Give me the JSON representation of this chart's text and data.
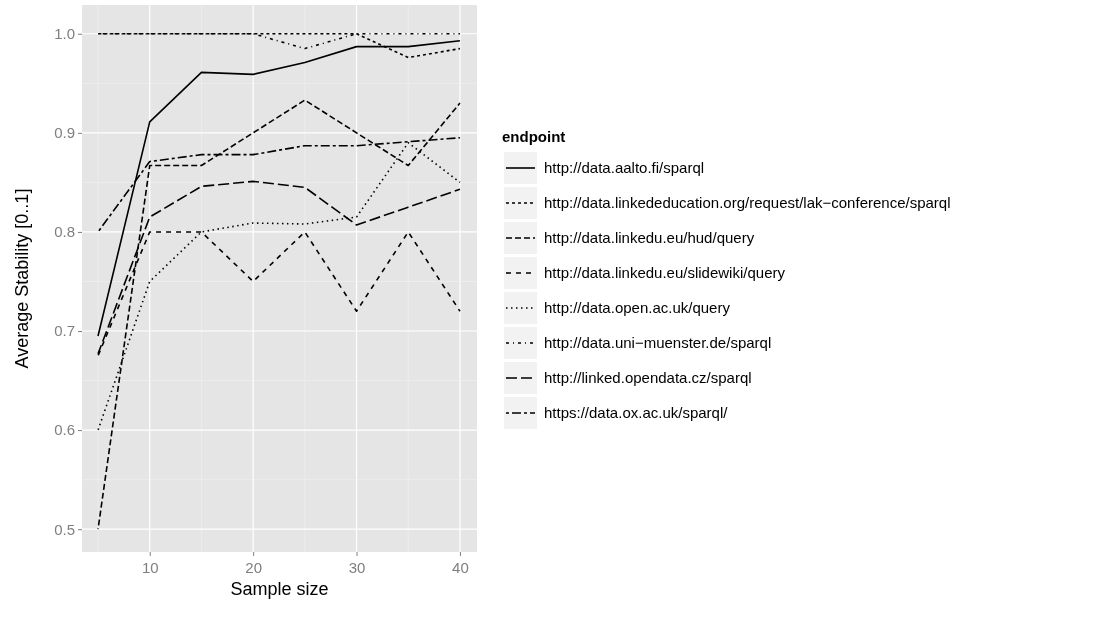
{
  "chart_data": {
    "type": "line",
    "xlabel": "Sample size",
    "ylabel": "Average Stability [0..1]",
    "legend_title": "endpoint",
    "legend": "right",
    "grid": true,
    "x": [
      5,
      10,
      15,
      20,
      25,
      30,
      35,
      40
    ],
    "xlim": [
      3.45,
      41.65
    ],
    "xticks": [
      10,
      20,
      30,
      40
    ],
    "ylim": [
      0.477,
      1.029
    ],
    "yticks": [
      {
        "value": 0.5,
        "label": "0.5"
      },
      {
        "value": 0.6,
        "label": "0.6"
      },
      {
        "value": 0.7,
        "label": "0.7"
      },
      {
        "value": 0.8,
        "label": "0.8"
      },
      {
        "value": 0.9,
        "label": "0.9"
      },
      {
        "value": 1,
        "label": "1.0"
      }
    ],
    "series": [
      {
        "name": "http://data.aalto.fi/sparql",
        "color": "#000000",
        "line_style": "solid",
        "values": [
          0.695,
          0.911,
          0.961,
          0.959,
          0.971,
          0.987,
          0.987,
          0.993
        ]
      },
      {
        "name": "http://data.linkededucation.org/request/lak−conference/sparql",
        "color": "#000000",
        "line_style": "dashed",
        "values": [
          1.0,
          1.0,
          1.0,
          1.0,
          1.0,
          1.0,
          0.976,
          0.985
        ]
      },
      {
        "name": "http://data.linkedu.eu/hud/query",
        "color": "#000000",
        "line_style": "dashed",
        "values": [
          0.5,
          0.867,
          0.867,
          0.9,
          0.933,
          0.9,
          0.867,
          0.93
        ]
      },
      {
        "name": "http://data.linkedu.eu/slidewiki/query",
        "color": "#000000",
        "line_style": "dashed",
        "values": [
          0.675,
          0.8,
          0.8,
          0.75,
          0.8,
          0.72,
          0.8,
          0.72
        ]
      },
      {
        "name": "http://data.open.ac.uk/query",
        "color": "#000000",
        "line_style": "dotted",
        "values": [
          0.6,
          0.75,
          0.8,
          0.809,
          0.808,
          0.815,
          0.89,
          0.85
        ]
      },
      {
        "name": "http://data.uni−muenster.de/sparql",
        "color": "#000000",
        "line_style": "dashed",
        "values": [
          1.0,
          1.0,
          1.0,
          1.0,
          0.985,
          1.0,
          1.0,
          1.0
        ]
      },
      {
        "name": "http://linked.opendata.cz/sparql",
        "color": "#000000",
        "line_style": "dashed",
        "values": [
          0.677,
          0.815,
          0.846,
          0.851,
          0.845,
          0.807,
          0.825,
          0.843
        ]
      },
      {
        "name": "https://data.ox.ac.uk/sparql/",
        "color": "#000000",
        "line_style": "dashed",
        "values": [
          0.8,
          0.871,
          0.878,
          0.878,
          0.887,
          0.887,
          0.891,
          0.895
        ]
      }
    ]
  }
}
